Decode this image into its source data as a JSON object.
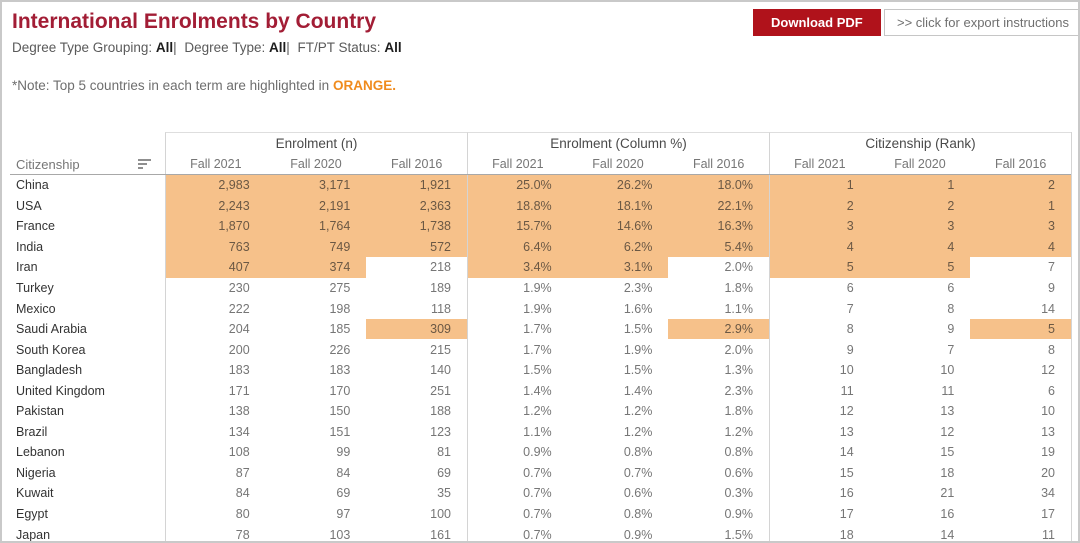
{
  "header": {
    "title": "International Enrolments by Country",
    "filters": [
      {
        "label": "Degree Type Grouping:",
        "value": "All"
      },
      {
        "label": "Degree Type:",
        "value": "All"
      },
      {
        "label": "FT/PT Status:",
        "value": "All"
      }
    ],
    "filter_separator": "|",
    "note_prefix": "*Note: Top 5 countries in each term are highlighted in ",
    "note_highlight": "ORANGE",
    "note_suffix": ".",
    "download_button": "Download PDF",
    "export_button": ">> click for export instructions"
  },
  "colors": {
    "title_red": "#a21d35",
    "button_red": "#b0121b",
    "highlight_orange": "#f6c18a",
    "orange_accent": "#f08b1d"
  },
  "table": {
    "row_header": "Citizenship",
    "sort_icon": "sort-descending",
    "sections": [
      {
        "label": "Enrolment (n)",
        "key": "n"
      },
      {
        "label": "Enrolment (Column %)",
        "key": "pct"
      },
      {
        "label": "Citizenship (Rank)",
        "key": "rank"
      }
    ],
    "terms": [
      "Fall 2021",
      "Fall 2020",
      "Fall 2016"
    ],
    "rows": [
      {
        "country": "China",
        "n": [
          "2,983",
          "3,171",
          "1,921"
        ],
        "pct": [
          "25.0%",
          "26.2%",
          "18.0%"
        ],
        "rank": [
          "1",
          "1",
          "2"
        ],
        "highlight": [
          true,
          true,
          true
        ]
      },
      {
        "country": "USA",
        "n": [
          "2,243",
          "2,191",
          "2,363"
        ],
        "pct": [
          "18.8%",
          "18.1%",
          "22.1%"
        ],
        "rank": [
          "2",
          "2",
          "1"
        ],
        "highlight": [
          true,
          true,
          true
        ]
      },
      {
        "country": "France",
        "n": [
          "1,870",
          "1,764",
          "1,738"
        ],
        "pct": [
          "15.7%",
          "14.6%",
          "16.3%"
        ],
        "rank": [
          "3",
          "3",
          "3"
        ],
        "highlight": [
          true,
          true,
          true
        ]
      },
      {
        "country": "India",
        "n": [
          "763",
          "749",
          "572"
        ],
        "pct": [
          "6.4%",
          "6.2%",
          "5.4%"
        ],
        "rank": [
          "4",
          "4",
          "4"
        ],
        "highlight": [
          true,
          true,
          true
        ]
      },
      {
        "country": "Iran",
        "n": [
          "407",
          "374",
          "218"
        ],
        "pct": [
          "3.4%",
          "3.1%",
          "2.0%"
        ],
        "rank": [
          "5",
          "5",
          "7"
        ],
        "highlight": [
          true,
          true,
          false
        ]
      },
      {
        "country": "Turkey",
        "n": [
          "230",
          "275",
          "189"
        ],
        "pct": [
          "1.9%",
          "2.3%",
          "1.8%"
        ],
        "rank": [
          "6",
          "6",
          "9"
        ],
        "highlight": [
          false,
          false,
          false
        ]
      },
      {
        "country": "Mexico",
        "n": [
          "222",
          "198",
          "118"
        ],
        "pct": [
          "1.9%",
          "1.6%",
          "1.1%"
        ],
        "rank": [
          "7",
          "8",
          "14"
        ],
        "highlight": [
          false,
          false,
          false
        ]
      },
      {
        "country": "Saudi Arabia",
        "n": [
          "204",
          "185",
          "309"
        ],
        "pct": [
          "1.7%",
          "1.5%",
          "2.9%"
        ],
        "rank": [
          "8",
          "9",
          "5"
        ],
        "highlight": [
          false,
          false,
          true
        ]
      },
      {
        "country": "South Korea",
        "n": [
          "200",
          "226",
          "215"
        ],
        "pct": [
          "1.7%",
          "1.9%",
          "2.0%"
        ],
        "rank": [
          "9",
          "7",
          "8"
        ],
        "highlight": [
          false,
          false,
          false
        ]
      },
      {
        "country": "Bangladesh",
        "n": [
          "183",
          "183",
          "140"
        ],
        "pct": [
          "1.5%",
          "1.5%",
          "1.3%"
        ],
        "rank": [
          "10",
          "10",
          "12"
        ],
        "highlight": [
          false,
          false,
          false
        ]
      },
      {
        "country": "United Kingdom",
        "n": [
          "171",
          "170",
          "251"
        ],
        "pct": [
          "1.4%",
          "1.4%",
          "2.3%"
        ],
        "rank": [
          "11",
          "11",
          "6"
        ],
        "highlight": [
          false,
          false,
          false
        ]
      },
      {
        "country": "Pakistan",
        "n": [
          "138",
          "150",
          "188"
        ],
        "pct": [
          "1.2%",
          "1.2%",
          "1.8%"
        ],
        "rank": [
          "12",
          "13",
          "10"
        ],
        "highlight": [
          false,
          false,
          false
        ]
      },
      {
        "country": "Brazil",
        "n": [
          "134",
          "151",
          "123"
        ],
        "pct": [
          "1.1%",
          "1.2%",
          "1.2%"
        ],
        "rank": [
          "13",
          "12",
          "13"
        ],
        "highlight": [
          false,
          false,
          false
        ]
      },
      {
        "country": "Lebanon",
        "n": [
          "108",
          "99",
          "81"
        ],
        "pct": [
          "0.9%",
          "0.8%",
          "0.8%"
        ],
        "rank": [
          "14",
          "15",
          "19"
        ],
        "highlight": [
          false,
          false,
          false
        ]
      },
      {
        "country": "Nigeria",
        "n": [
          "87",
          "84",
          "69"
        ],
        "pct": [
          "0.7%",
          "0.7%",
          "0.6%"
        ],
        "rank": [
          "15",
          "18",
          "20"
        ],
        "highlight": [
          false,
          false,
          false
        ]
      },
      {
        "country": "Kuwait",
        "n": [
          "84",
          "69",
          "35"
        ],
        "pct": [
          "0.7%",
          "0.6%",
          "0.3%"
        ],
        "rank": [
          "16",
          "21",
          "34"
        ],
        "highlight": [
          false,
          false,
          false
        ]
      },
      {
        "country": "Egypt",
        "n": [
          "80",
          "97",
          "100"
        ],
        "pct": [
          "0.7%",
          "0.8%",
          "0.9%"
        ],
        "rank": [
          "17",
          "16",
          "17"
        ],
        "highlight": [
          false,
          false,
          false
        ]
      },
      {
        "country": "Japan",
        "n": [
          "78",
          "103",
          "161"
        ],
        "pct": [
          "0.7%",
          "0.9%",
          "1.5%"
        ],
        "rank": [
          "18",
          "14",
          "11"
        ],
        "highlight": [
          false,
          false,
          false
        ]
      }
    ]
  }
}
